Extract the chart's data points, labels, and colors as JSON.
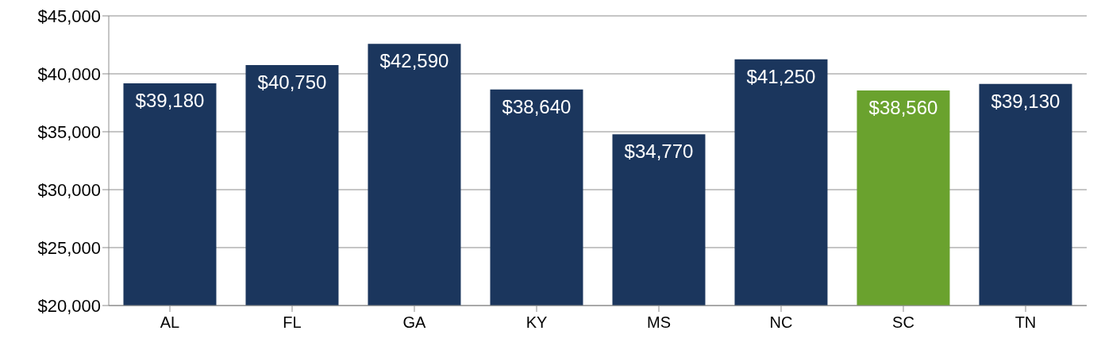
{
  "chart_data": {
    "type": "bar",
    "categories": [
      "AL",
      "FL",
      "GA",
      "KY",
      "MS",
      "NC",
      "SC",
      "TN"
    ],
    "values": [
      39180,
      40750,
      42590,
      38640,
      34770,
      41250,
      38560,
      39130
    ],
    "colors": [
      "#1b365d",
      "#1b365d",
      "#1b365d",
      "#1b365d",
      "#1b365d",
      "#1b365d",
      "#6aa22e",
      "#1b365d"
    ],
    "value_labels": [
      "$39,180",
      "$40,750",
      "$42,590",
      "$38,640",
      "$34,770",
      "$41,250",
      "$38,560",
      "$39,130"
    ],
    "ylim": [
      20000,
      45000
    ],
    "yticks": [
      {
        "value": 20000,
        "label": "$20,000"
      },
      {
        "value": 25000,
        "label": "$25,000"
      },
      {
        "value": 30000,
        "label": "$30,000"
      },
      {
        "value": 35000,
        "label": "$35,000"
      },
      {
        "value": 40000,
        "label": "$40,000"
      },
      {
        "value": 45000,
        "label": "$45,000"
      }
    ],
    "grid": "y",
    "legend": false
  }
}
